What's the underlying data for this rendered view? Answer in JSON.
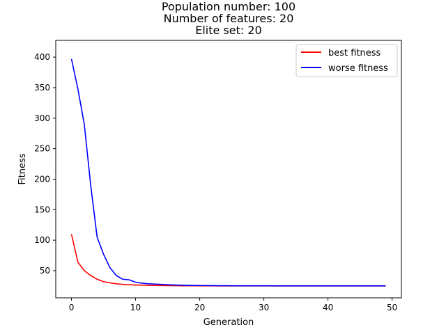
{
  "chart_data": {
    "type": "line",
    "title_lines": [
      "Population number: 100",
      "Number of features: 20",
      "Elite set: 20"
    ],
    "xlabel": "Generation",
    "ylabel": "Fitness",
    "xlim": [
      -2.45,
      51.45
    ],
    "ylim": [
      5.5,
      427.5
    ],
    "xticks": [
      0,
      10,
      20,
      30,
      40,
      50
    ],
    "yticks": [
      50,
      100,
      150,
      200,
      250,
      300,
      350,
      400
    ],
    "grid": false,
    "legend_position": "top-right",
    "x": [
      0,
      1,
      2,
      3,
      4,
      5,
      6,
      7,
      8,
      9,
      10,
      11,
      12,
      13,
      14,
      15,
      16,
      17,
      18,
      19,
      20,
      21,
      22,
      23,
      24,
      25,
      26,
      27,
      28,
      29,
      30,
      31,
      32,
      33,
      34,
      35,
      36,
      37,
      38,
      39,
      40,
      41,
      42,
      43,
      44,
      45,
      46,
      47,
      48,
      49
    ],
    "series": [
      {
        "name": "best fitness",
        "color": "#ff0000",
        "values": [
          110,
          64,
          50,
          42,
          36,
          32,
          30,
          28.5,
          27.5,
          27,
          26.5,
          26.2,
          26,
          25.8,
          25.6,
          25.5,
          25.4,
          25.3,
          25.2,
          25.2,
          25.1,
          25.1,
          25.1,
          25,
          25,
          25,
          25,
          25,
          25,
          25,
          25,
          25,
          25,
          25,
          25,
          25,
          25,
          25,
          25,
          25,
          25,
          25,
          25,
          25,
          25,
          25,
          25,
          25,
          25,
          25
        ]
      },
      {
        "name": "worse fitness",
        "color": "#0000ff",
        "values": [
          397,
          348,
          290,
          190,
          105,
          77,
          55,
          42,
          36,
          35,
          31,
          29.5,
          28.5,
          28,
          27.5,
          27,
          26.5,
          26.2,
          26,
          25.8,
          25.7,
          25.6,
          25.5,
          25.4,
          25.4,
          25.3,
          25.3,
          25.3,
          25.2,
          25.2,
          25.2,
          25.2,
          25.1,
          25.1,
          25.1,
          25.1,
          25.1,
          25.1,
          25.1,
          25.1,
          25.1,
          25.1,
          25.1,
          25.1,
          25.1,
          25.1,
          25.1,
          25.1,
          25.1,
          25.1
        ]
      }
    ]
  }
}
